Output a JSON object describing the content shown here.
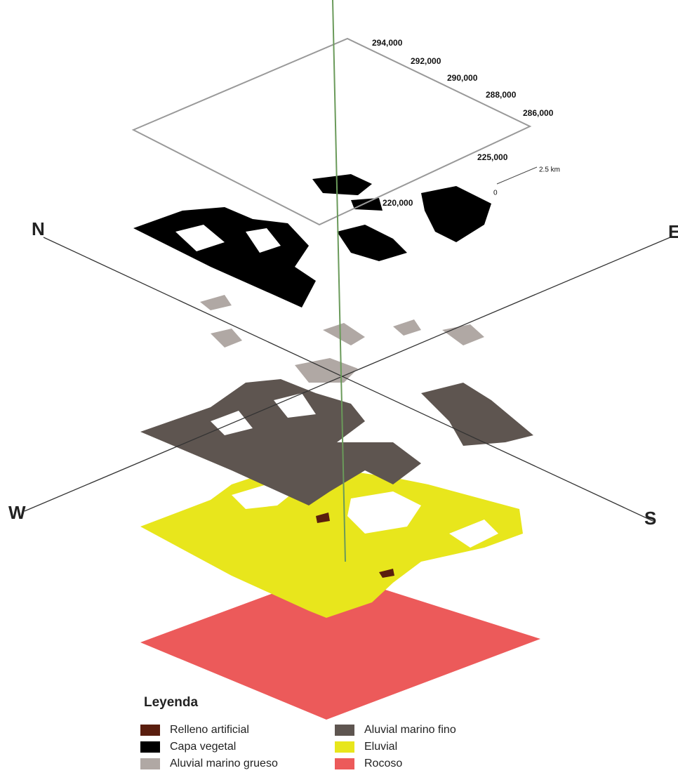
{
  "map": {
    "coordinates": [
      "294,000",
      "292,000",
      "290,000",
      "288,000",
      "286,000",
      "225,000",
      "220,000"
    ],
    "scale": {
      "start": "0",
      "end": "2.5 km"
    },
    "directions": {
      "north": "N",
      "east": "E",
      "south": "S",
      "west": "W"
    }
  },
  "legend": {
    "title": "Leyenda",
    "items": [
      {
        "label": "Relleno artificial",
        "color": "#5a1e0e"
      },
      {
        "label": "Capa vegetal",
        "color": "#000000"
      },
      {
        "label": "Aluvial marino grueso",
        "color": "#b0a8a4"
      },
      {
        "label": "Aluvial marino fino",
        "color": "#5e5550"
      },
      {
        "label": "Eluvial",
        "color": "#e8e61c"
      },
      {
        "label": "Rocoso",
        "color": "#ec5a5a"
      }
    ]
  }
}
